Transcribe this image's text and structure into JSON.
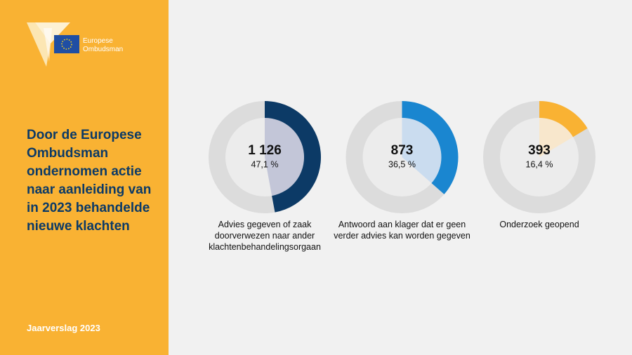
{
  "sidebar": {
    "logo_text": [
      "Europese",
      "Ombudsman"
    ],
    "title": "Door de Europese Ombudsman ondernomen actie naar aanleiding van in 2023 behandelde nieuwe klachten",
    "footer": "Jaarverslag 2023"
  },
  "chart_data": [
    {
      "type": "donut",
      "categories": [
        "Advies gegeven of zaak doorverwezen naar ander klachtenbehandelingsorgaan"
      ],
      "values": [
        1126
      ],
      "value_labels": [
        "1 126"
      ],
      "shares": [
        47.1
      ],
      "share_labels": [
        "47,1 %"
      ],
      "color": "#0c3a66",
      "inner_color": "#c3c6d8"
    },
    {
      "type": "donut",
      "categories": [
        "Antwoord aan klager dat er geen verder advies kan worden gegeven"
      ],
      "values": [
        873
      ],
      "value_labels": [
        "873"
      ],
      "shares": [
        36.5
      ],
      "share_labels": [
        "36,5 %"
      ],
      "color": "#1a86d0",
      "inner_color": "#cadcef"
    },
    {
      "type": "donut",
      "categories": [
        "Onderzoek geopend"
      ],
      "values": [
        393
      ],
      "value_labels": [
        "393"
      ],
      "shares": [
        16.4
      ],
      "share_labels": [
        "16,4 %"
      ],
      "color": "#f9b233",
      "inner_color": "#f8e7cc"
    }
  ]
}
